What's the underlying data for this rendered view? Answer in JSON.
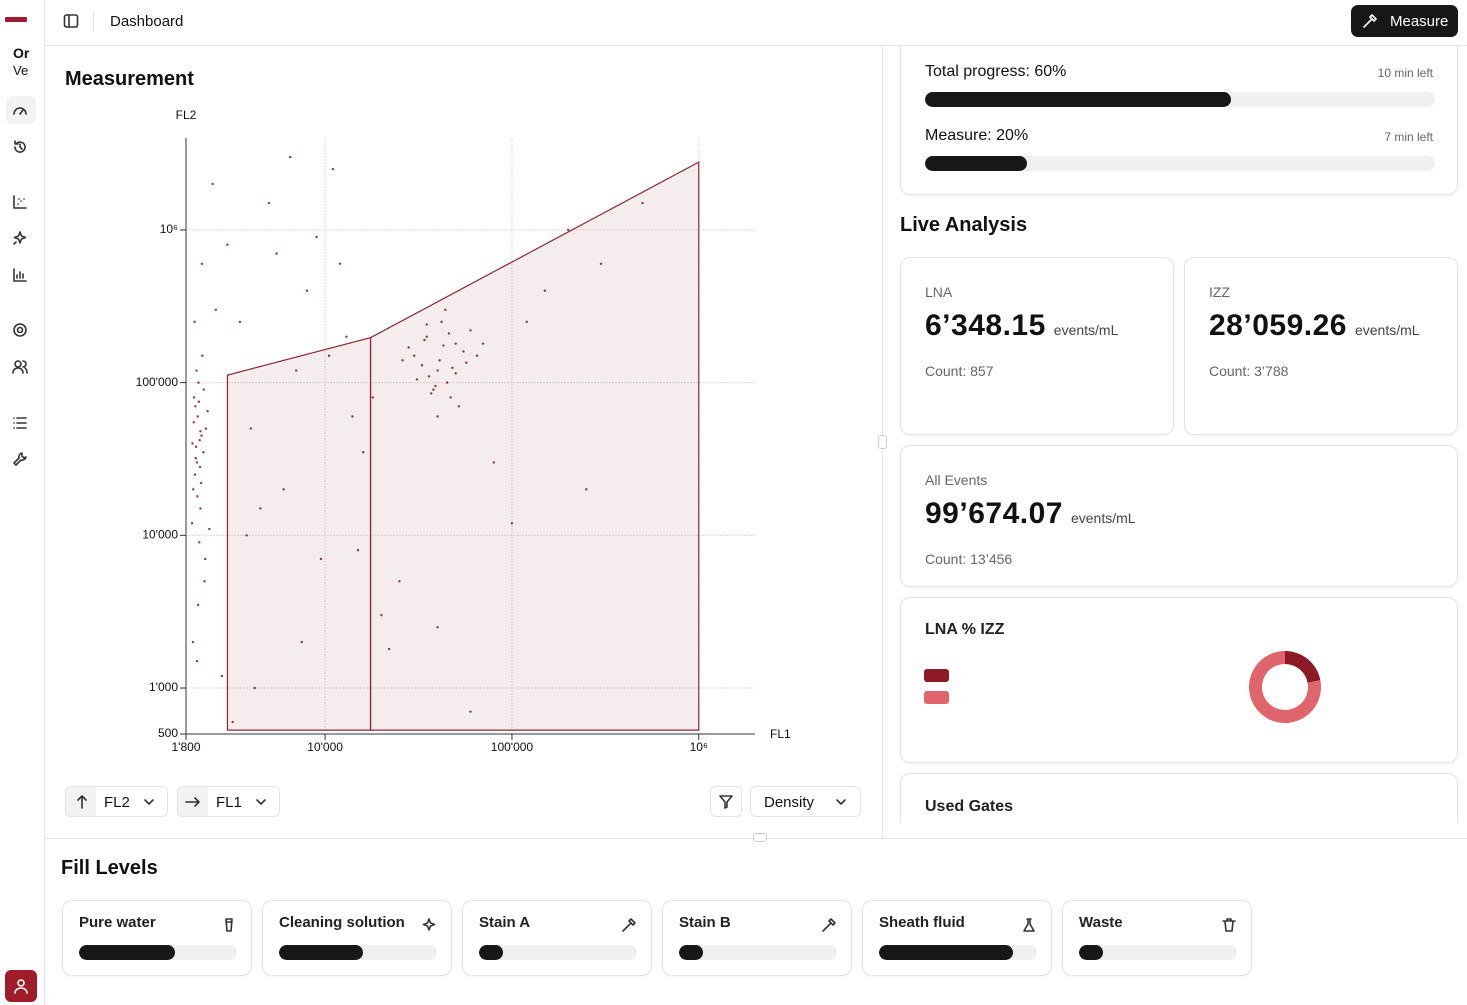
{
  "sidebar": {
    "org": "Or",
    "version": "Ve"
  },
  "header": {
    "title": "Dashboard",
    "button": "Measure"
  },
  "measurement": {
    "title": "Measurement",
    "controls": {
      "y_axis": "FL2",
      "x_axis": "FL1",
      "mode": "Density"
    }
  },
  "progress": [
    {
      "label": "Total progress: 60%",
      "value": 60,
      "remaining": "10 min left"
    },
    {
      "label": "Measure: 20%",
      "value": 20,
      "remaining": "7 min left"
    }
  ],
  "live_analysis": {
    "title": "Live Analysis",
    "cards": [
      {
        "label": "LNA",
        "value": "6’348.15",
        "unit": "events/mL",
        "count": "Count: 857"
      },
      {
        "label": "IZZ",
        "value": "28’059.26",
        "unit": "events/mL",
        "count": "Count: 3’788"
      },
      {
        "label": "All Events",
        "value": "99’674.07",
        "unit": "events/mL",
        "count": "Count: 13’456"
      }
    ],
    "used_gates": "Used Gates"
  },
  "fill_levels": {
    "title": "Fill Levels",
    "items": [
      {
        "name": "Pure water",
        "level": 61
      },
      {
        "name": "Cleaning solution",
        "level": 53
      },
      {
        "name": "Stain A",
        "level": 15
      },
      {
        "name": "Stain B",
        "level": 15
      },
      {
        "name": "Sheath fluid",
        "level": 85
      },
      {
        "name": "Waste",
        "level": 15
      }
    ]
  },
  "chart_data": [
    {
      "type": "scatter",
      "x_label": "FL1",
      "y_label": "FL2",
      "color": "#7d1525",
      "log_x": true,
      "log_y": true,
      "grid": true,
      "xlim": [
        1800,
        2000000
      ],
      "ylim": [
        500,
        4000000
      ],
      "xticks": [
        {
          "value": 1800,
          "label": "1'800"
        },
        {
          "value": 10000,
          "label": "10'000"
        },
        {
          "value": 100000,
          "label": "100'000"
        },
        {
          "value": 1000000,
          "label": "10⁶"
        }
      ],
      "yticks": [
        500,
        {
          "value": 1000,
          "label": "1'000"
        },
        {
          "value": 10000,
          "label": "10'000"
        },
        {
          "value": 100000,
          "label": "100'000"
        },
        {
          "value": 1000000,
          "label": "10⁶"
        }
      ],
      "gates": [
        {
          "x": [
            3000,
            3000,
            17500,
            17500
          ],
          "y": [
            112000,
            530,
            530,
            197000
          ]
        },
        {
          "x": [
            17500,
            17500,
            1000000,
            1000000
          ],
          "y": [
            197000,
            530,
            530,
            2780000
          ]
        }
      ],
      "gate_color": "#8b2a33",
      "x": [
        1950,
        2010,
        2080,
        2150,
        1990,
        2230,
        2050,
        2120,
        2300,
        1970,
        2060,
        2180,
        2020,
        2260,
        2100,
        1940,
        2140,
        2200,
        2040,
        2350,
        1980,
        2090,
        2170,
        2070,
        2240,
        2000,
        2130,
        2280,
        2030,
        1960,
        2110,
        2190,
        2400,
        2060,
        2150,
        30000,
        40000,
        35000,
        45000,
        50000,
        38000,
        42000,
        33000,
        55000,
        47000,
        36000,
        60000,
        41000,
        28000,
        52000,
        44000,
        39000,
        34000,
        48000,
        65000,
        37000,
        43000,
        31000,
        57000,
        46000,
        40000,
        35000,
        50000,
        70000,
        26000,
        2500,
        3000,
        5000,
        8000,
        12000,
        4000,
        6000,
        15000,
        20000,
        9000,
        3500,
        7000,
        11000,
        25000,
        150000,
        300000,
        80000,
        200000,
        500000,
        18000,
        2800,
        4500,
        13000,
        6500,
        100000,
        3200,
        22000,
        9500,
        16000,
        5500,
        250000,
        120000,
        2600,
        7500,
        40000,
        14000,
        3800,
        60000,
        10500,
        4200
      ],
      "y": [
        40000,
        25000,
        60000,
        15000,
        80000,
        35000,
        120000,
        9000,
        50000,
        20000,
        30000,
        45000,
        70000,
        5000,
        100000,
        12000,
        28000,
        150000,
        38000,
        65000,
        55000,
        3500,
        22000,
        18000,
        90000,
        250000,
        42000,
        7000,
        32000,
        2000,
        75000,
        600000,
        11000,
        1500,
        48000,
        150000,
        120000,
        200000,
        100000,
        180000,
        90000,
        250000,
        130000,
        160000,
        80000,
        110000,
        220000,
        140000,
        170000,
        70000,
        300000,
        95000,
        190000,
        125000,
        150000,
        85000,
        175000,
        105000,
        135000,
        210000,
        60000,
        240000,
        115000,
        180000,
        140000,
        2000000,
        800000,
        1500000,
        400000,
        600000,
        50000,
        20000,
        8000,
        3000,
        900000,
        250000,
        120000,
        2500000,
        5000,
        400000,
        600000,
        30000,
        1000000,
        1500000,
        80000,
        1200,
        15000,
        200000,
        3000000,
        12000,
        600,
        1800,
        7000,
        35000,
        700000,
        20000,
        250000,
        300000,
        2000,
        2500,
        60000,
        10000,
        700,
        150000,
        1000
      ]
    },
    {
      "type": "pie",
      "title": "LNA % IZZ",
      "donut": true,
      "values": [
        22,
        78
      ],
      "colors": [
        "#8b1a24",
        "#e0646c"
      ]
    }
  ]
}
